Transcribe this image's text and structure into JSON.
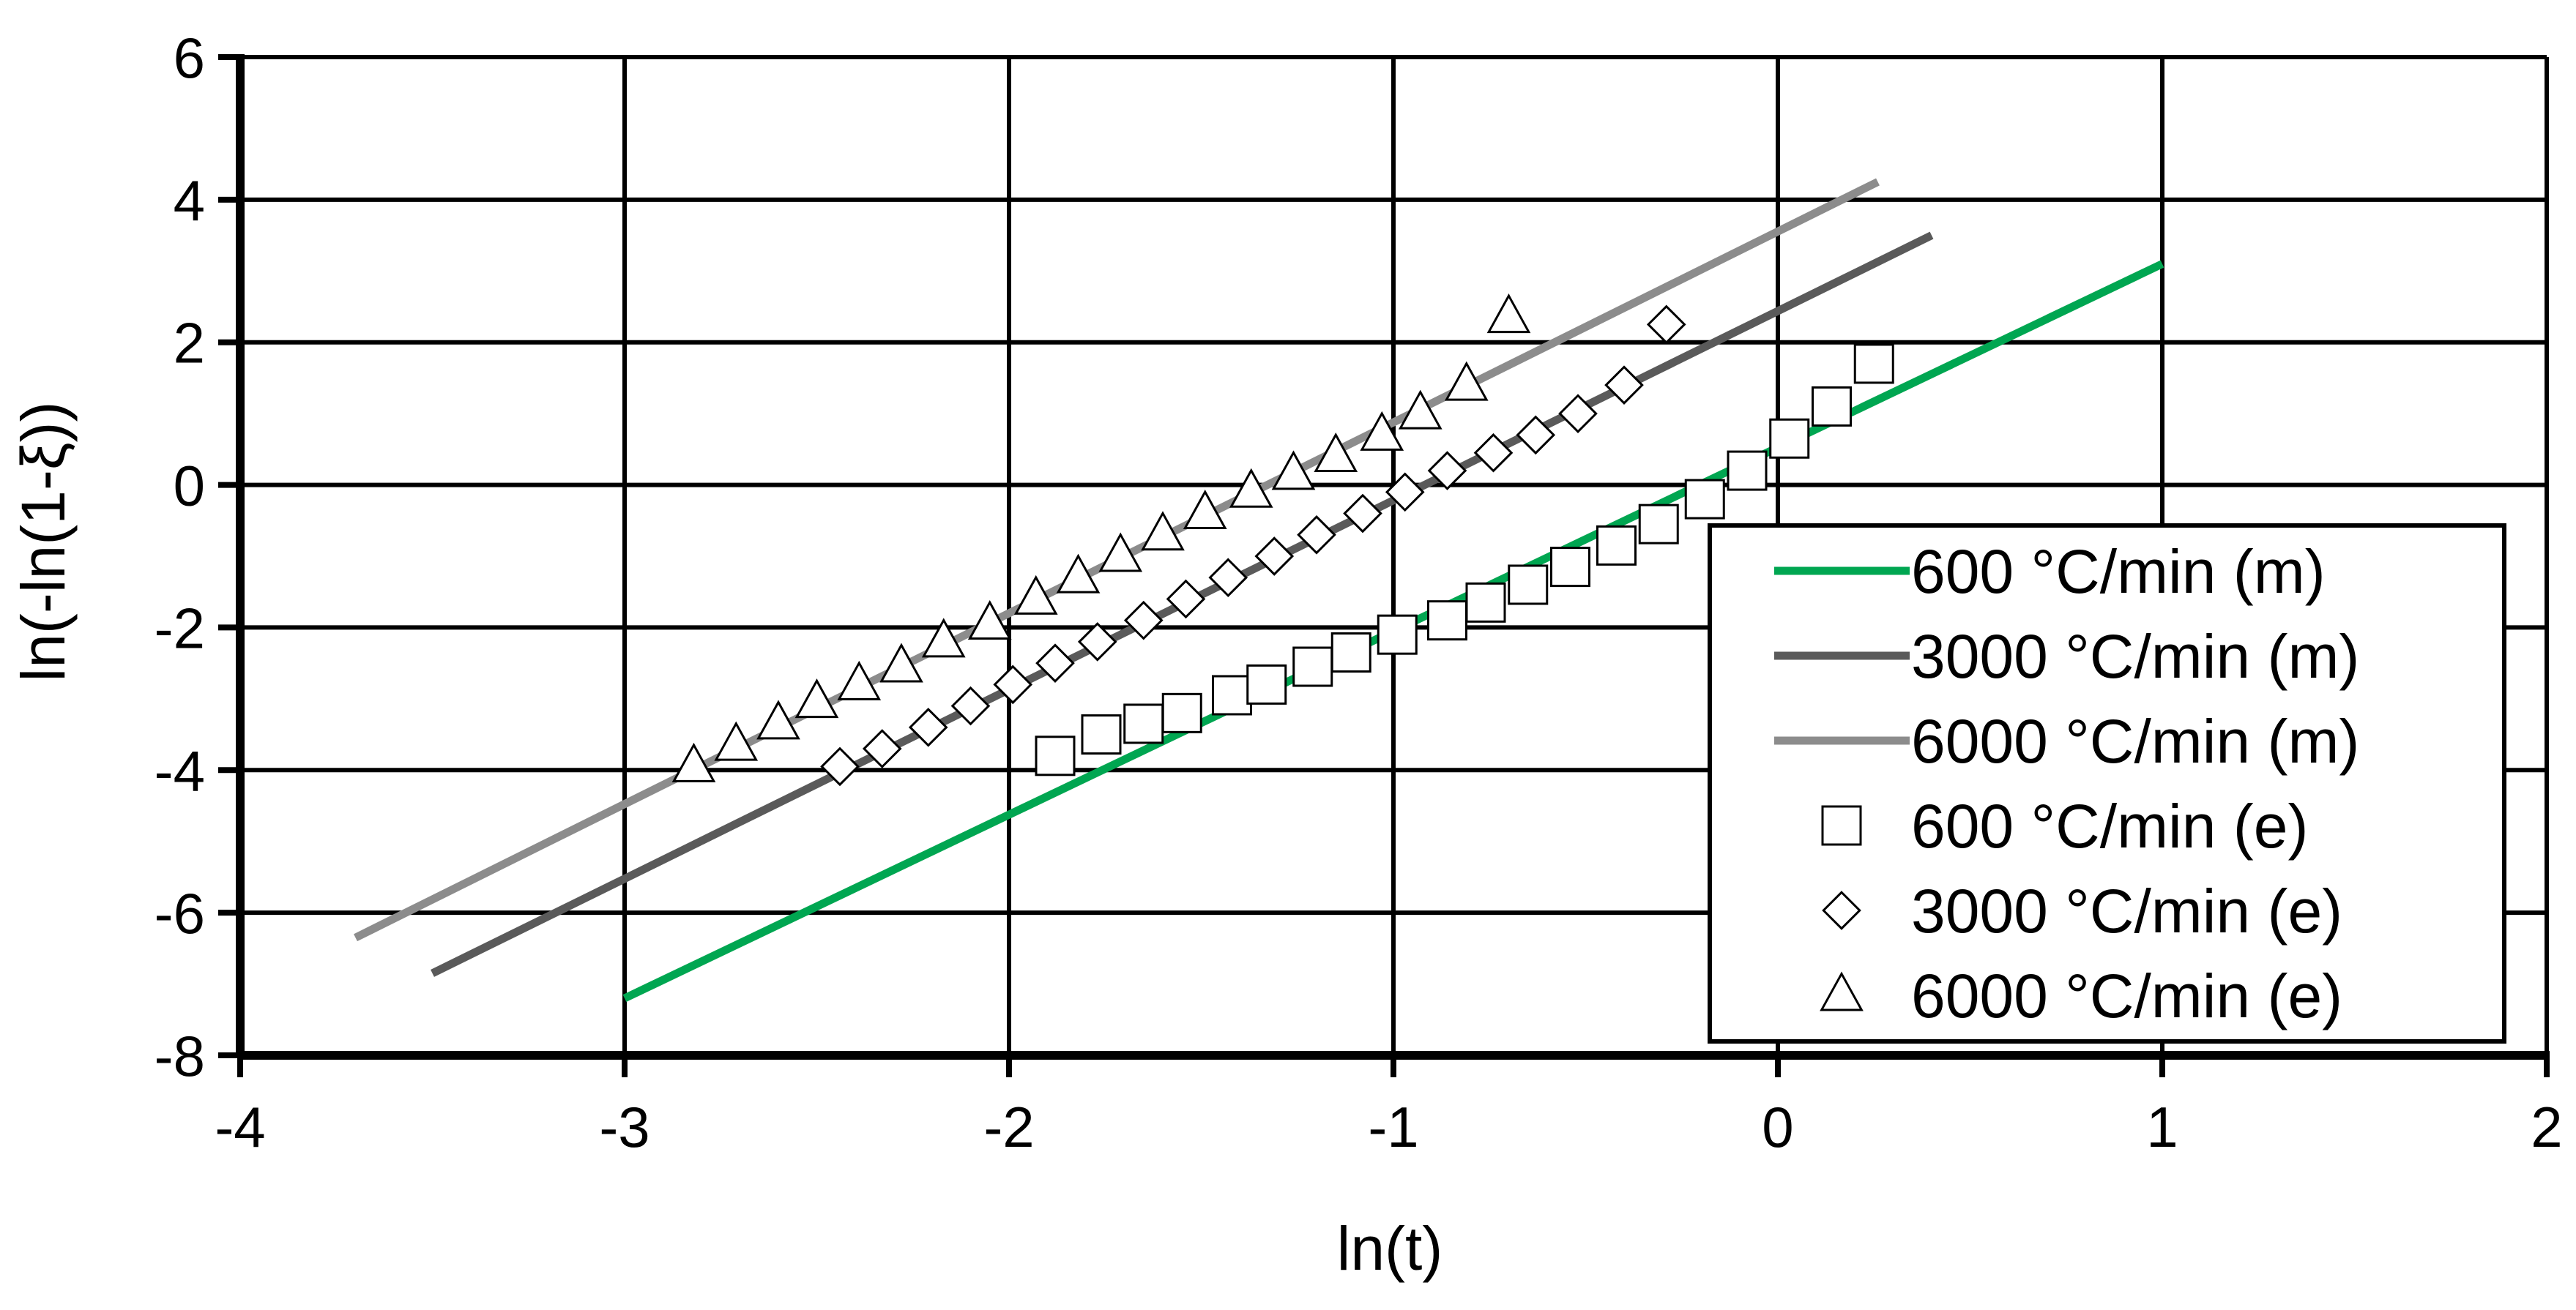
{
  "chart_data": {
    "type": "scatter",
    "title": "",
    "xlabel": "ln(t)",
    "ylabel": "ln(-ln(1-ξ))",
    "xlim": [
      -4,
      2
    ],
    "ylim": [
      -8,
      6
    ],
    "xticks": [
      -4,
      -3,
      -2,
      -1,
      0,
      1,
      2
    ],
    "yticks": [
      -8,
      -6,
      -4,
      -2,
      0,
      2,
      4,
      6
    ],
    "xtick_labels": [
      "-4",
      "-3",
      "-2",
      "-1",
      "0",
      "1",
      "2"
    ],
    "ytick_labels": [
      "-8",
      "-6",
      "-4",
      "-2",
      "0",
      "2",
      "4",
      "6"
    ],
    "grid": true,
    "legend_position": "bottom-right",
    "series": [
      {
        "name": "600 °C/min (m)",
        "kind": "line",
        "color": "#00a651",
        "x": [
          -3.0,
          1.0
        ],
        "y": [
          -7.2,
          3.1
        ]
      },
      {
        "name": "3000 °C/min (m)",
        "kind": "line",
        "color": "#5a5a5a",
        "x": [
          -3.5,
          0.4
        ],
        "y": [
          -6.85,
          3.5
        ]
      },
      {
        "name": "6000 °C/min (m)",
        "kind": "line",
        "color": "#8c8c8c",
        "x": [
          -3.7,
          0.26
        ],
        "y": [
          -6.35,
          4.25
        ]
      },
      {
        "name": "600 °C/min (e)",
        "kind": "marker",
        "marker": "square",
        "x": [
          -1.88,
          -1.76,
          -1.65,
          -1.55,
          -1.42,
          -1.33,
          -1.21,
          -1.11,
          -0.99,
          -0.86,
          -0.76,
          -0.65,
          -0.54,
          -0.42,
          -0.31,
          -0.19,
          -0.08,
          0.03,
          0.14,
          0.25
        ],
        "y": [
          -3.8,
          -3.5,
          -3.35,
          -3.2,
          -2.95,
          -2.8,
          -2.55,
          -2.35,
          -2.1,
          -1.9,
          -1.65,
          -1.4,
          -1.15,
          -0.85,
          -0.55,
          -0.2,
          0.2,
          0.65,
          1.1,
          1.7
        ]
      },
      {
        "name": "3000 °C/min (e)",
        "kind": "marker",
        "marker": "diamond",
        "x": [
          -2.44,
          -2.33,
          -2.21,
          -2.1,
          -1.99,
          -1.88,
          -1.77,
          -1.65,
          -1.54,
          -1.43,
          -1.31,
          -1.2,
          -1.08,
          -0.97,
          -0.86,
          -0.74,
          -0.63,
          -0.52,
          -0.4,
          -0.29
        ],
        "y": [
          -3.95,
          -3.7,
          -3.4,
          -3.1,
          -2.8,
          -2.5,
          -2.2,
          -1.9,
          -1.6,
          -1.3,
          -1.0,
          -0.7,
          -0.4,
          -0.1,
          0.2,
          0.45,
          0.7,
          1.0,
          1.4,
          2.25
        ]
      },
      {
        "name": "6000 °C/min (e)",
        "kind": "marker",
        "marker": "triangle",
        "x": [
          -2.82,
          -2.71,
          -2.6,
          -2.5,
          -2.39,
          -2.28,
          -2.17,
          -2.05,
          -1.93,
          -1.82,
          -1.71,
          -1.6,
          -1.49,
          -1.37,
          -1.26,
          -1.15,
          -1.03,
          -0.93,
          -0.81,
          -0.7
        ],
        "y": [
          -3.95,
          -3.65,
          -3.35,
          -3.05,
          -2.8,
          -2.55,
          -2.2,
          -1.95,
          -1.6,
          -1.3,
          -1.0,
          -0.7,
          -0.4,
          -0.1,
          0.15,
          0.4,
          0.7,
          1.0,
          1.4,
          2.35
        ]
      }
    ]
  }
}
